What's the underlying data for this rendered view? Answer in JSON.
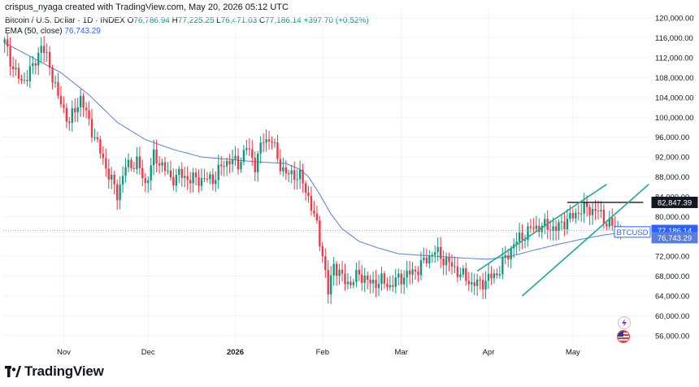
{
  "header": {
    "credit": "crispus_nyaga created with TradingView.com, May 20, 2026 05:12 UTC",
    "symbol": "Bitcoin / U.S. Dollar · 1D · INDEX",
    "open_label": "O",
    "open": "76,786.94",
    "high_label": "H",
    "high": "77,225.25",
    "low_label": "L",
    "low": "76,471.03",
    "close_label": "C",
    "close": "77,186.14",
    "change": "+397.70 (+0.52%)",
    "ema_label": "EMA (50, close)",
    "ema_value": "76,743.29"
  },
  "brand": {
    "name": "TradingView"
  },
  "colors": {
    "up": "#089981",
    "down": "#f23645",
    "ema": "#5b7fd6",
    "channel": "#22ab94",
    "last_price": "#2962ff"
  },
  "chart_data": {
    "type": "candlestick",
    "symbol": "BTCUSD",
    "ylim": [
      54000,
      122000
    ],
    "y_ticks": [
      "120,000.00",
      "116,000.00",
      "112,000.00",
      "108,000.00",
      "104,000.00",
      "100,000.00",
      "96,000.00",
      "92,000.00",
      "88,000.00",
      "84,000.00",
      "80,000.00",
      "76,000.00",
      "72,000.00",
      "68,000.00",
      "64,000.00",
      "60,000.00",
      "56,000.00"
    ],
    "y_tick_values": [
      120000,
      116000,
      112000,
      108000,
      104000,
      100000,
      96000,
      92000,
      88000,
      84000,
      80000,
      76000,
      72000,
      68000,
      64000,
      60000,
      56000
    ],
    "x_ticks": [
      {
        "label": "Nov",
        "index": 21,
        "bold": false
      },
      {
        "label": "Dec",
        "index": 51,
        "bold": false
      },
      {
        "label": "2026",
        "index": 82,
        "bold": true
      },
      {
        "label": "Feb",
        "index": 113,
        "bold": false
      },
      {
        "label": "Mar",
        "index": 141,
        "bold": false
      },
      {
        "label": "Apr",
        "index": 172,
        "bold": false
      },
      {
        "label": "May",
        "index": 202,
        "bold": false
      }
    ],
    "total_slots": 230,
    "close_anchors": [
      [
        0,
        115000
      ],
      [
        3,
        110000
      ],
      [
        6,
        107000
      ],
      [
        10,
        110000
      ],
      [
        13,
        114500
      ],
      [
        16,
        110500
      ],
      [
        19,
        104000
      ],
      [
        23,
        99000
      ],
      [
        27,
        104000
      ],
      [
        30,
        99000
      ],
      [
        34,
        93000
      ],
      [
        37,
        88500
      ],
      [
        40,
        84500
      ],
      [
        43,
        90000
      ],
      [
        47,
        91000
      ],
      [
        50,
        86500
      ],
      [
        53,
        92000
      ],
      [
        56,
        90500
      ],
      [
        59,
        87500
      ],
      [
        62,
        88500
      ],
      [
        66,
        87500
      ],
      [
        70,
        87500
      ],
      [
        74,
        87500
      ],
      [
        77,
        90000
      ],
      [
        80,
        91500
      ],
      [
        83,
        90500
      ],
      [
        86,
        94000
      ],
      [
        89,
        90500
      ],
      [
        92,
        95500
      ],
      [
        95,
        95500
      ],
      [
        97,
        91500
      ],
      [
        100,
        88500
      ],
      [
        103,
        88500
      ],
      [
        105,
        88000
      ],
      [
        108,
        84000
      ],
      [
        111,
        78000
      ],
      [
        113,
        72500
      ],
      [
        115,
        64500
      ],
      [
        117,
        70500
      ],
      [
        120,
        67500
      ],
      [
        123,
        66500
      ],
      [
        126,
        68500
      ],
      [
        130,
        66500
      ],
      [
        134,
        67000
      ],
      [
        137,
        66000
      ],
      [
        140,
        67500
      ],
      [
        144,
        68500
      ],
      [
        147,
        69500
      ],
      [
        150,
        71500
      ],
      [
        153,
        73000
      ],
      [
        156,
        71500
      ],
      [
        159,
        70000
      ],
      [
        163,
        68000
      ],
      [
        166,
        66500
      ],
      [
        169,
        66500
      ],
      [
        172,
        67500
      ],
      [
        175,
        68500
      ],
      [
        178,
        71500
      ],
      [
        181,
        74500
      ],
      [
        184,
        76000
      ],
      [
        187,
        77500
      ],
      [
        190,
        78000
      ],
      [
        193,
        78000
      ],
      [
        196,
        77500
      ],
      [
        199,
        79000
      ],
      [
        202,
        80000
      ],
      [
        205,
        81500
      ],
      [
        208,
        81500
      ],
      [
        211,
        81000
      ],
      [
        213,
        79500
      ],
      [
        215,
        78500
      ],
      [
        217,
        77500
      ],
      [
        219,
        77186
      ]
    ],
    "ema_anchors": [
      [
        0,
        115000
      ],
      [
        10,
        112000
      ],
      [
        20,
        109000
      ],
      [
        30,
        104500
      ],
      [
        40,
        99000
      ],
      [
        50,
        95500
      ],
      [
        60,
        93500
      ],
      [
        70,
        92000
      ],
      [
        80,
        91500
      ],
      [
        90,
        91000
      ],
      [
        100,
        90700
      ],
      [
        105,
        89500
      ],
      [
        108,
        88000
      ],
      [
        112,
        84500
      ],
      [
        116,
        80500
      ],
      [
        120,
        77500
      ],
      [
        126,
        75000
      ],
      [
        132,
        73800
      ],
      [
        140,
        72500
      ],
      [
        148,
        72200
      ],
      [
        156,
        71900
      ],
      [
        164,
        71600
      ],
      [
        172,
        71400
      ],
      [
        180,
        72000
      ],
      [
        188,
        73200
      ],
      [
        196,
        74300
      ],
      [
        204,
        75300
      ],
      [
        212,
        76200
      ],
      [
        219,
        76743
      ]
    ],
    "annotations": {
      "resistance_level": 82847.39,
      "resistance_label": "82,847.39",
      "horizontal_line": {
        "from": 200,
        "to": 227,
        "value": 82847.39
      },
      "channel_upper": [
        [
          168,
          69000
        ],
        [
          214,
          86500
        ]
      ],
      "channel_lower": [
        [
          184,
          64000
        ],
        [
          229,
          86500
        ]
      ]
    },
    "last_price": {
      "symbol": "BTCUSD",
      "price": "77,186.14",
      "value": 77186.14
    },
    "ema_last": {
      "price": "76,743.29",
      "value": 76743.29
    },
    "grid": true
  }
}
